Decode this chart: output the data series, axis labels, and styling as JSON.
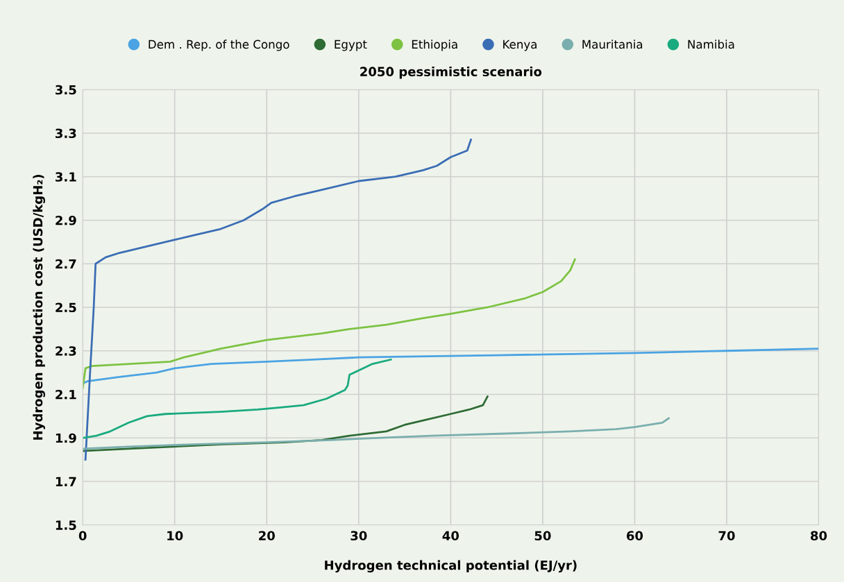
{
  "chart_data": {
    "type": "line",
    "title": "2050 pessimistic scenario",
    "xlabel": "Hydrogen technical potential (EJ/yr)",
    "ylabel": "Hydrogen production cost (USD/kgH₂)",
    "xlim": [
      0,
      80
    ],
    "ylim": [
      1.5,
      3.5
    ],
    "xticks": [
      0,
      10,
      20,
      30,
      40,
      50,
      60,
      70,
      80
    ],
    "yticks": [
      1.5,
      1.7,
      1.9,
      2.1,
      2.3,
      2.5,
      2.7,
      2.9,
      3.1,
      3.3,
      3.5
    ],
    "grid": true,
    "legend": "top",
    "marker": "none",
    "line_style": "solid",
    "series": [
      {
        "name": "Dem . Rep. of the Congo",
        "color": "#4ba3e3",
        "x": [
          0,
          0.5,
          4,
          8,
          10,
          14,
          20,
          25,
          30,
          45,
          60,
          70,
          80
        ],
        "values": [
          2.15,
          2.16,
          2.18,
          2.2,
          2.22,
          2.24,
          2.25,
          2.26,
          2.27,
          2.28,
          2.29,
          2.3,
          2.31
        ]
      },
      {
        "name": "Egypt",
        "color": "#2f6b35",
        "x": [
          0,
          5,
          15,
          22,
          26,
          29,
          33,
          35,
          37,
          40,
          42,
          43.5,
          44
        ],
        "values": [
          1.84,
          1.85,
          1.87,
          1.88,
          1.89,
          1.91,
          1.93,
          1.96,
          1.98,
          2.01,
          2.03,
          2.05,
          2.09
        ]
      },
      {
        "name": "Ethiopia",
        "color": "#7dc242",
        "x": [
          0,
          0.3,
          1,
          9.5,
          11,
          15,
          20,
          26,
          29,
          33,
          37,
          40,
          44,
          48,
          50,
          52,
          53,
          53.5
        ],
        "values": [
          2.13,
          2.22,
          2.23,
          2.25,
          2.27,
          2.31,
          2.35,
          2.38,
          2.4,
          2.42,
          2.45,
          2.47,
          2.5,
          2.54,
          2.57,
          2.62,
          2.67,
          2.72
        ]
      },
      {
        "name": "Kenya",
        "color": "#3b6db5",
        "x": [
          0.3,
          0.8,
          1.2,
          1.4,
          2.5,
          4,
          7,
          10,
          12,
          15,
          17.5,
          19.5,
          20.5,
          23,
          26,
          30,
          34,
          37,
          38.5,
          40,
          41.8,
          42.2
        ],
        "values": [
          1.8,
          2.2,
          2.5,
          2.7,
          2.73,
          2.75,
          2.78,
          2.81,
          2.83,
          2.86,
          2.9,
          2.95,
          2.98,
          3.01,
          3.04,
          3.08,
          3.1,
          3.13,
          3.15,
          3.19,
          3.22,
          3.27
        ]
      },
      {
        "name": "Mauritania",
        "color": "#7aaeae",
        "x": [
          0,
          5,
          12,
          20,
          27,
          32,
          38,
          46,
          53,
          58,
          60,
          63,
          63.7
        ],
        "values": [
          1.85,
          1.86,
          1.87,
          1.88,
          1.89,
          1.9,
          1.91,
          1.92,
          1.93,
          1.94,
          1.95,
          1.97,
          1.99
        ]
      },
      {
        "name": "Namibia",
        "color": "#1aaa7f",
        "x": [
          0,
          1.5,
          3,
          5,
          7,
          9,
          15,
          19,
          21.5,
          24,
          26.5,
          28.5,
          28.8,
          29,
          30,
          31.5,
          33.5
        ],
        "values": [
          1.9,
          1.91,
          1.93,
          1.97,
          2.0,
          2.01,
          2.02,
          2.03,
          2.04,
          2.05,
          2.08,
          2.12,
          2.14,
          2.19,
          2.21,
          2.24,
          2.26
        ]
      }
    ]
  }
}
